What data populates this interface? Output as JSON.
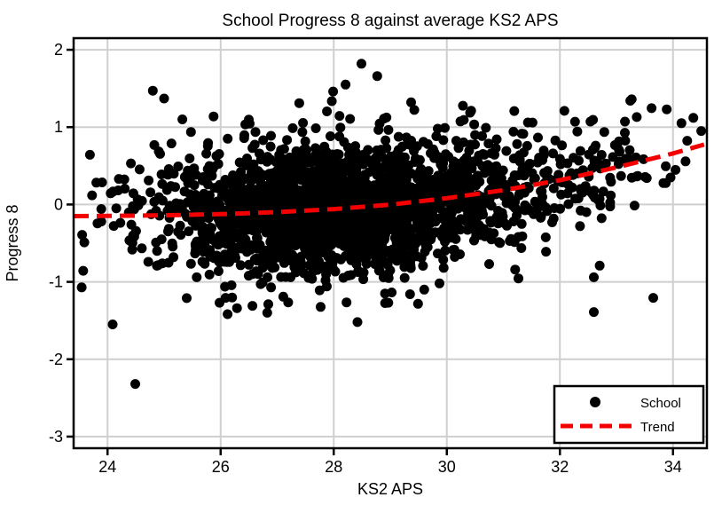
{
  "chart_data": {
    "type": "scatter",
    "title": "School Progress 8 against average KS2 APS",
    "xlabel": "KS2 APS",
    "ylabel": "Progress 8",
    "xlim": [
      23.4,
      34.6
    ],
    "ylim": [
      -3.15,
      2.15
    ],
    "x_ticks": [
      24,
      26,
      28,
      30,
      32,
      34
    ],
    "y_ticks": [
      -3,
      -2,
      -1,
      0,
      1,
      2
    ],
    "grid": true,
    "background": "#ffffff",
    "colors": {
      "point": "#000000",
      "trend": "#f40000",
      "grid": "#cfcfcf",
      "frame": "#000000"
    },
    "marker_radius_px": 5.5,
    "legend": {
      "position": "bottom-right",
      "entries": [
        {
          "label": "School",
          "marker": "dot",
          "color": "#000000"
        },
        {
          "label": "Trend",
          "marker": "dashed-line",
          "color": "#f40000"
        }
      ]
    },
    "trend_line": {
      "name": "Trend",
      "style": "dashed",
      "points": [
        [
          23.4,
          -0.15
        ],
        [
          24.0,
          -0.148
        ],
        [
          25.0,
          -0.14
        ],
        [
          26.0,
          -0.125
        ],
        [
          27.0,
          -0.098
        ],
        [
          28.0,
          -0.06
        ],
        [
          29.0,
          -0.002
        ],
        [
          30.0,
          0.082
        ],
        [
          31.0,
          0.185
        ],
        [
          32.0,
          0.315
        ],
        [
          33.0,
          0.48
        ],
        [
          34.0,
          0.66
        ],
        [
          34.55,
          0.775
        ]
      ]
    },
    "scatter": {
      "name": "School",
      "notable_points": [
        [
          23.59,
          -0.49
        ],
        [
          23.89,
          -0.22
        ],
        [
          24.09,
          -1.55
        ],
        [
          24.2,
          0.33
        ],
        [
          24.49,
          -2.32
        ],
        [
          25.0,
          1.37
        ],
        [
          25.4,
          -1.21
        ],
        [
          25.98,
          -1.27
        ],
        [
          26.29,
          -1.34
        ],
        [
          27.39,
          1.31
        ],
        [
          27.99,
          1.46
        ],
        [
          28.21,
          1.55
        ],
        [
          28.49,
          1.82
        ],
        [
          28.77,
          1.66
        ],
        [
          28.42,
          -1.52
        ],
        [
          29.35,
          -1.16
        ],
        [
          29.6,
          -1.1
        ],
        [
          29.87,
          -1.02
        ],
        [
          32.08,
          1.21
        ],
        [
          32.6,
          -0.94
        ],
        [
          32.6,
          -1.39
        ],
        [
          33.36,
          1.13
        ],
        [
          33.89,
          1.23
        ],
        [
          34.36,
          1.12
        ],
        [
          34.5,
          0.95
        ]
      ],
      "cloud_model": {
        "seed": 7,
        "clusters": [
          {
            "n": 2000,
            "x_mean": 28.15,
            "x_sd": 1.45,
            "y_sd": 0.4,
            "y_sd2": 0.72,
            "p2": 0.12
          },
          {
            "n": 210,
            "x_mean": 31.9,
            "x_sd": 1.25,
            "y_sd": 0.33,
            "y_sd2": 0.6,
            "p2": 0.1
          },
          {
            "n": 70,
            "x_mean": 25.35,
            "x_sd": 0.75,
            "y_sd": 0.48
          }
        ],
        "x_clip": [
          23.5,
          34.45
        ],
        "y_clip": [
          -1.45,
          1.5
        ]
      }
    }
  }
}
